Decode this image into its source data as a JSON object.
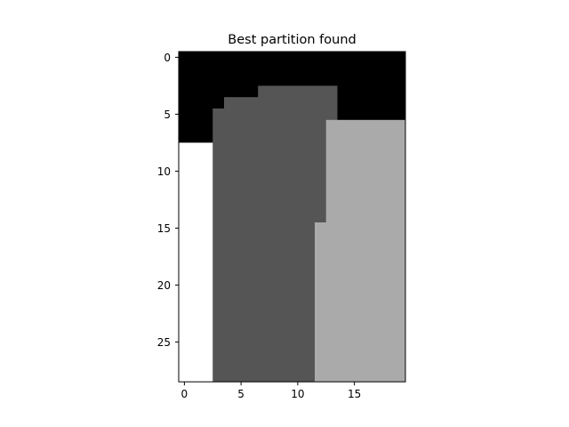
{
  "chart_data": {
    "type": "heatmap",
    "title": "Best partition found",
    "xlabel": "",
    "ylabel": "",
    "colormap": "gray",
    "grid": false,
    "n_cols": 20,
    "n_rows": 29,
    "x_ticks": [
      0,
      5,
      10,
      15
    ],
    "y_ticks": [
      0,
      5,
      10,
      15,
      20,
      25
    ],
    "x_tick_labels": [
      "0",
      "5",
      "10",
      "15"
    ],
    "y_tick_labels": [
      "0",
      "5",
      "10",
      "15",
      "20",
      "25"
    ],
    "class_colors": [
      "#000000",
      "#555555",
      "#aaaaaa",
      "#ffffff"
    ],
    "row_spans": [
      {
        "rows": [
          0,
          2
        ],
        "cols": [
          [
            0,
            19,
            0
          ]
        ]
      },
      {
        "rows": [
          3,
          3
        ],
        "cols": [
          [
            0,
            6,
            0
          ],
          [
            7,
            13,
            1
          ],
          [
            14,
            19,
            0
          ]
        ]
      },
      {
        "rows": [
          4,
          4
        ],
        "cols": [
          [
            0,
            3,
            0
          ],
          [
            4,
            13,
            1
          ],
          [
            14,
            19,
            0
          ]
        ]
      },
      {
        "rows": [
          5,
          5
        ],
        "cols": [
          [
            0,
            2,
            0
          ],
          [
            3,
            13,
            1
          ],
          [
            14,
            19,
            0
          ]
        ]
      },
      {
        "rows": [
          6,
          7
        ],
        "cols": [
          [
            0,
            2,
            0
          ],
          [
            3,
            12,
            1
          ],
          [
            13,
            19,
            2
          ]
        ]
      },
      {
        "rows": [
          8,
          14
        ],
        "cols": [
          [
            0,
            2,
            3
          ],
          [
            3,
            12,
            1
          ],
          [
            13,
            19,
            2
          ]
        ]
      },
      {
        "rows": [
          15,
          28
        ],
        "cols": [
          [
            0,
            2,
            3
          ],
          [
            3,
            11,
            1
          ],
          [
            12,
            19,
            2
          ]
        ]
      }
    ]
  }
}
